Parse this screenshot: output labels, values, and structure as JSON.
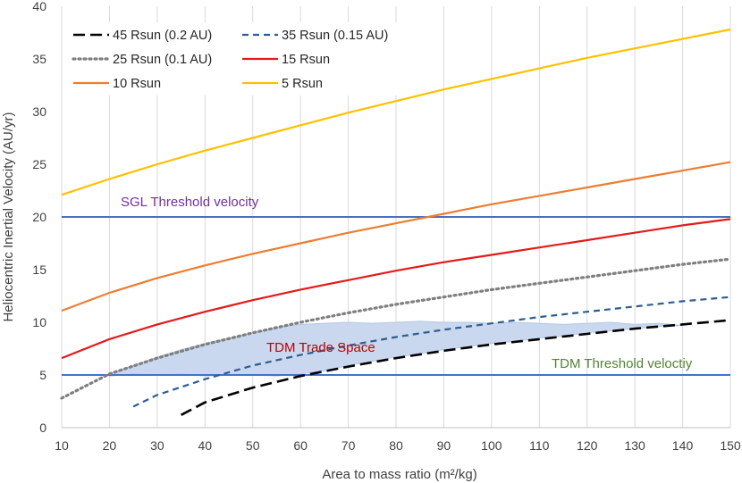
{
  "chart_data": {
    "type": "line",
    "title": "",
    "xlabel": "Area to mass ratio (m²/kg)",
    "ylabel": "Heliocentric Inertial Velocity (AU/yr)",
    "xlim": [
      10,
      150
    ],
    "ylim": [
      0,
      40
    ],
    "x_ticks": [
      10,
      20,
      30,
      40,
      50,
      60,
      70,
      80,
      90,
      100,
      110,
      120,
      130,
      140,
      150
    ],
    "y_ticks": [
      0,
      5,
      10,
      15,
      20,
      25,
      30,
      35,
      40
    ],
    "grid": "vertical",
    "legend_position": "top-left",
    "series": [
      {
        "name": "45 Rsun (0.2 AU)",
        "color": "#000000",
        "style": "long-dash",
        "x": [
          35,
          40,
          50,
          60,
          70,
          80,
          90,
          100,
          110,
          120,
          130,
          140,
          150
        ],
        "y": [
          1.2,
          2.4,
          3.8,
          4.9,
          5.8,
          6.6,
          7.3,
          7.9,
          8.4,
          8.9,
          9.4,
          9.8,
          10.2
        ]
      },
      {
        "name": "35 Rsun (0.15 AU)",
        "color": "#2e5e8e",
        "style": "dash",
        "x": [
          25,
          30,
          40,
          50,
          60,
          70,
          80,
          90,
          100,
          110,
          120,
          130,
          140,
          150
        ],
        "y": [
          2.0,
          3.1,
          4.6,
          5.9,
          6.9,
          7.8,
          8.6,
          9.3,
          9.9,
          10.5,
          11.0,
          11.5,
          12.0,
          12.4
        ]
      },
      {
        "name": "25 Rsun (0.1 AU)",
        "color": "#7f7f7f",
        "style": "dot",
        "x": [
          10,
          20,
          30,
          40,
          50,
          60,
          70,
          80,
          90,
          100,
          110,
          120,
          130,
          140,
          150
        ],
        "y": [
          2.8,
          5.1,
          6.6,
          7.9,
          9.0,
          10.0,
          10.9,
          11.7,
          12.4,
          13.1,
          13.7,
          14.3,
          14.9,
          15.5,
          16.0
        ]
      },
      {
        "name": "15 Rsun",
        "color": "#e31a1c",
        "style": "solid",
        "x": [
          10,
          20,
          30,
          40,
          50,
          60,
          70,
          80,
          90,
          100,
          110,
          120,
          130,
          140,
          150
        ],
        "y": [
          6.6,
          8.4,
          9.8,
          11.0,
          12.1,
          13.1,
          14.0,
          14.9,
          15.7,
          16.4,
          17.1,
          17.8,
          18.5,
          19.2,
          19.8
        ]
      },
      {
        "name": "10 Rsun",
        "color": "#ed7d31",
        "style": "solid",
        "x": [
          10,
          20,
          30,
          40,
          50,
          60,
          70,
          80,
          90,
          100,
          110,
          120,
          130,
          140,
          150
        ],
        "y": [
          11.1,
          12.8,
          14.2,
          15.4,
          16.5,
          17.5,
          18.5,
          19.4,
          20.3,
          21.2,
          22.0,
          22.8,
          23.6,
          24.4,
          25.2
        ]
      },
      {
        "name": "5 Rsun",
        "color": "#ffc000",
        "style": "solid",
        "x": [
          10,
          20,
          30,
          40,
          50,
          60,
          70,
          80,
          90,
          100,
          110,
          120,
          130,
          140,
          150
        ],
        "y": [
          22.1,
          23.6,
          25.0,
          26.3,
          27.5,
          28.7,
          29.9,
          31.0,
          32.1,
          33.1,
          34.1,
          35.1,
          36.0,
          36.9,
          37.8
        ]
      }
    ],
    "threshold_lines": [
      {
        "name": "SGL Threshold velocity",
        "y": 20,
        "color": "#4472c4",
        "label_color": "#7030a0"
      },
      {
        "name": "TDM Threshold velocity",
        "label": "TDM Threshold veloctiy",
        "y": 5,
        "color": "#4472c4",
        "label_color": "#548235"
      }
    ],
    "regions": [
      {
        "name": "TDM Trade Space",
        "fill": "#c9d8ee",
        "label_color": "#c00000",
        "upper": {
          "x": [
            20,
            25,
            30,
            35,
            40,
            45,
            50,
            55,
            60,
            65,
            70,
            75,
            80,
            85,
            90,
            95,
            100,
            105,
            110,
            115,
            120,
            125,
            130,
            135,
            140
          ],
          "y": [
            5.1,
            5.9,
            6.7,
            7.4,
            8.0,
            8.5,
            9.0,
            9.5,
            9.8,
            9.9,
            10.0,
            9.9,
            10.0,
            10.1,
            10.0,
            10.0,
            9.9,
            10.0,
            9.9,
            9.8,
            9.9,
            10.0,
            9.8,
            9.9,
            9.7
          ]
        },
        "lower": {
          "x": [
            20,
            25,
            30,
            35,
            40,
            45,
            50,
            55,
            60,
            65,
            70,
            75,
            80,
            85,
            90,
            95,
            100,
            105,
            110,
            115,
            120,
            125,
            130,
            135,
            140
          ],
          "y": [
            4.9,
            5.1,
            5.0,
            5.1,
            4.9,
            5.0,
            5.0,
            4.9,
            5.1,
            5.4,
            5.9,
            6.3,
            6.7,
            7.0,
            7.4,
            7.7,
            8.0,
            8.2,
            8.5,
            8.7,
            9.0,
            9.2,
            9.4,
            9.6,
            9.7
          ]
        }
      }
    ]
  }
}
